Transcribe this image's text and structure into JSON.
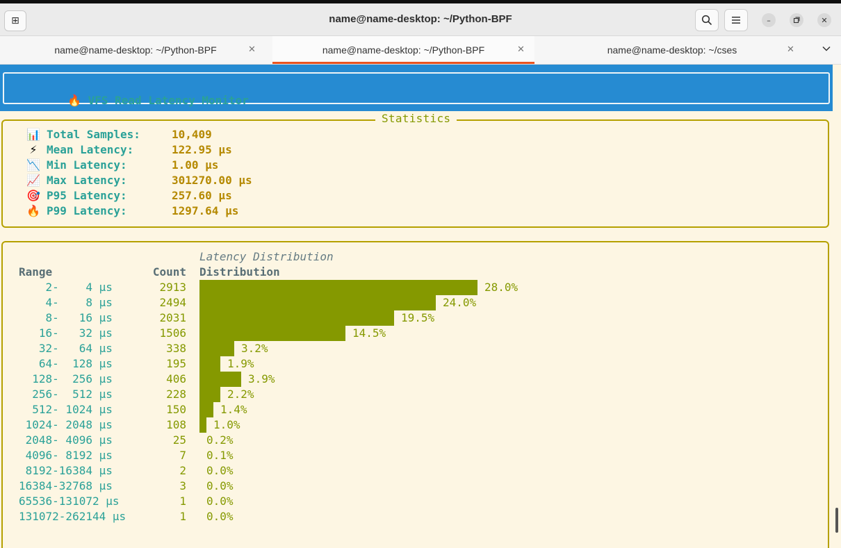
{
  "window": {
    "title": "name@name-desktop: ~/Python-BPF"
  },
  "tabs": [
    {
      "label": "name@name-desktop: ~/Python-BPF",
      "active": false
    },
    {
      "label": "name@name-desktop: ~/Python-BPF",
      "active": true
    },
    {
      "label": "name@name-desktop: ~/cses",
      "active": false
    }
  ],
  "icons": {
    "new_tab": "new-tab-icon",
    "search": "search-icon",
    "menu": "hamburger-menu-icon",
    "minimize": "minimize-icon",
    "maximize": "maximize-icon",
    "close": "close-icon",
    "tab_close": "close-icon",
    "tabs_dropdown": "chevron-down-icon"
  },
  "colors": {
    "accent_tab": "#e95420",
    "header_band": "#268bd2",
    "panel_border": "#b5a000",
    "label_teal": "#2aa198",
    "value_gold": "#b58900",
    "bar_olive": "#859900",
    "background": "#fdf6e3"
  },
  "header": {
    "icon": "🔥",
    "title": "VFS Read Latency Monitor"
  },
  "statistics": {
    "title": "Statistics",
    "rows": [
      {
        "icon": "📊",
        "label": "Total Samples:",
        "value": "10,409"
      },
      {
        "icon": "⚡",
        "label": "Mean Latency:",
        "value": "122.95 µs"
      },
      {
        "icon": "📉",
        "label": "Min Latency:",
        "value": "1.00 µs"
      },
      {
        "icon": "📈",
        "label": "Max Latency:",
        "value": "301270.00 µs"
      },
      {
        "icon": "🎯",
        "label": "P95 Latency:",
        "value": "257.60 µs"
      },
      {
        "icon": "🔥",
        "label": "P99 Latency:",
        "value": "1297.64 µs"
      }
    ]
  },
  "distribution": {
    "title": "Latency Distribution",
    "columns": {
      "range": "Range",
      "count": "Count",
      "dist": "Distribution"
    },
    "rows": [
      {
        "range": "    2-    4 µs",
        "count": "2913",
        "pct": "28.0%",
        "value": 28.0
      },
      {
        "range": "    4-    8 µs",
        "count": "2494",
        "pct": "24.0%",
        "value": 24.0
      },
      {
        "range": "    8-   16 µs",
        "count": "2031",
        "pct": "19.5%",
        "value": 19.5
      },
      {
        "range": "   16-   32 µs",
        "count": "1506",
        "pct": "14.5%",
        "value": 14.5
      },
      {
        "range": "   32-   64 µs",
        "count": "338",
        "pct": "3.2%",
        "value": 3.2
      },
      {
        "range": "   64-  128 µs",
        "count": "195",
        "pct": "1.9%",
        "value": 1.9
      },
      {
        "range": "  128-  256 µs",
        "count": "406",
        "pct": "3.9%",
        "value": 3.9
      },
      {
        "range": "  256-  512 µs",
        "count": "228",
        "pct": "2.2%",
        "value": 2.2
      },
      {
        "range": "  512- 1024 µs",
        "count": "150",
        "pct": "1.4%",
        "value": 1.4
      },
      {
        "range": " 1024- 2048 µs",
        "count": "108",
        "pct": "1.0%",
        "value": 1.0
      },
      {
        "range": " 2048- 4096 µs",
        "count": "25",
        "pct": "0.2%",
        "value": 0.2
      },
      {
        "range": " 4096- 8192 µs",
        "count": "7",
        "pct": "0.1%",
        "value": 0.1
      },
      {
        "range": " 8192-16384 µs",
        "count": "2",
        "pct": "0.0%",
        "value": 0.0
      },
      {
        "range": "16384-32768 µs",
        "count": "3",
        "pct": "0.0%",
        "value": 0.0
      },
      {
        "range": "65536-131072 µs",
        "count": "1",
        "pct": "0.0%",
        "value": 0.0
      },
      {
        "range": "131072-262144 µs",
        "count": "1",
        "pct": "0.0%",
        "value": 0.0
      }
    ]
  }
}
